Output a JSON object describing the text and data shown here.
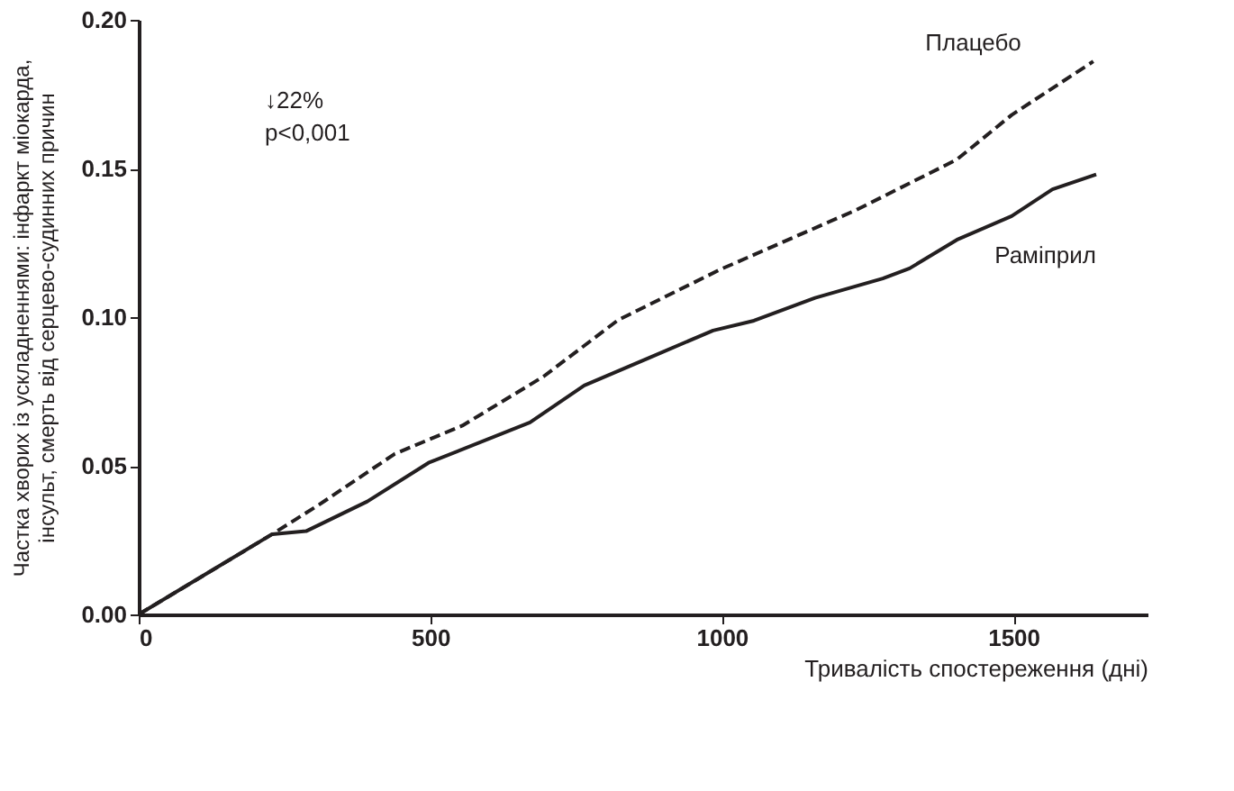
{
  "chart_data": {
    "type": "line",
    "xlabel": "Тривалість спостереження (дні)",
    "ylabel": "Частка хворих із ускладненнями: інфаркт міокарда,\nінсульт, смерть від серцево-судинних причин",
    "annotations": [
      "↓22%",
      "p<0,001"
    ],
    "xlim": [
      0,
      1730
    ],
    "xticks": [
      0,
      500,
      1000,
      1500
    ],
    "ylim": [
      0,
      0.2
    ],
    "yticks": [
      {
        "value": 0,
        "label": "0.00"
      },
      {
        "value": 0.05,
        "label": "0.05"
      },
      {
        "value": 0.1,
        "label": "0.10"
      },
      {
        "value": 0.15,
        "label": "0.15"
      },
      {
        "value": 0.2,
        "label": "0.20"
      }
    ],
    "grid": false,
    "series": [
      {
        "name": "Плацебо",
        "color": "#231f20",
        "line_style": "dashed",
        "x": [
          0,
          229,
          310,
          439,
          555,
          694,
          822,
          997,
          1230,
          1403,
          1497,
          1637
        ],
        "values": [
          0,
          0.027,
          0.037,
          0.054,
          0.0635,
          0.08,
          0.099,
          0.116,
          0.136,
          0.153,
          0.168,
          0.186
        ]
      },
      {
        "name": "Раміприл",
        "color": "#231f20",
        "line_style": "solid",
        "x": [
          0,
          229,
          287,
          392,
          497,
          671,
          764,
          880,
          985,
          1055,
          1160,
          1276,
          1322,
          1403,
          1497,
          1567,
          1642
        ],
        "values": [
          0,
          0.027,
          0.028,
          0.038,
          0.051,
          0.0646,
          0.077,
          0.0867,
          0.0955,
          0.0988,
          0.1065,
          0.113,
          0.1164,
          0.126,
          0.134,
          0.143,
          0.148
        ]
      }
    ]
  }
}
